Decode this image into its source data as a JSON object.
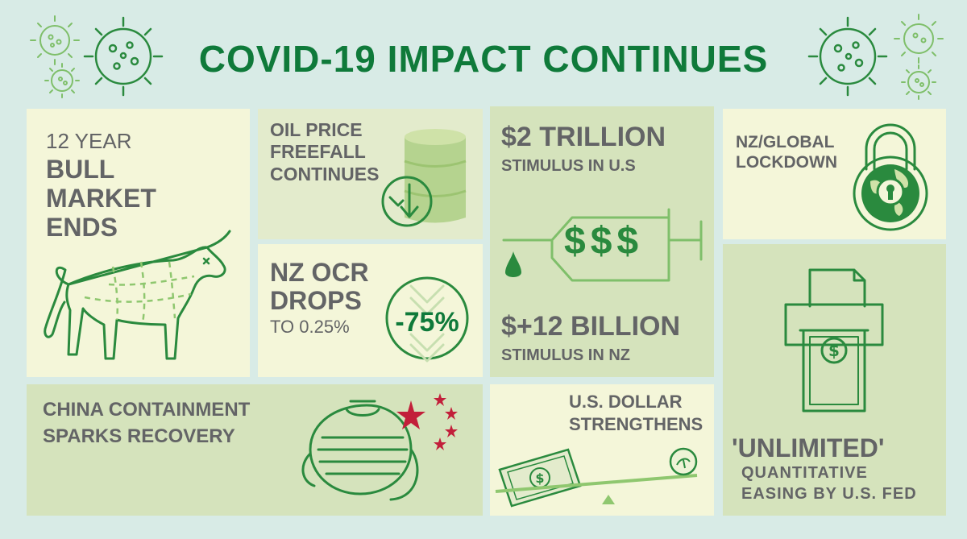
{
  "title": "COVID-19 IMPACT CONTINUES",
  "colors": {
    "title_green": "#0f7a3a",
    "icon_green": "#2a8a3e",
    "light_green": "#7fbf6a",
    "text_gray": "#636466",
    "star_red": "#c21f3a",
    "background": "#d8ebe6"
  },
  "bull_market": {
    "line1": "12 YEAR",
    "line2": "BULL",
    "line3": "MARKET",
    "line4": "ENDS"
  },
  "oil": {
    "line1": "OIL PRICE",
    "line2": "FREEFALL",
    "line3": "CONTINUES"
  },
  "ocr": {
    "line1": "NZ OCR",
    "line2": "DROPS",
    "line3": "TO 0.25%",
    "badge": "-75%"
  },
  "stimulus_us": {
    "amount": "$2 TRILLION",
    "label": "STIMULUS IN U.S"
  },
  "syringe": {
    "text": "$$$"
  },
  "stimulus_nz": {
    "amount": "$+12 BILLION",
    "label": "STIMULUS IN NZ"
  },
  "lockdown": {
    "line1": "NZ/GLOBAL",
    "line2": "LOCKDOWN"
  },
  "china": {
    "line1": "CHINA CONTAINMENT",
    "line2": "SPARKS RECOVERY"
  },
  "dollar": {
    "line1": "U.S. DOLLAR",
    "line2": "STRENGTHENS"
  },
  "qe": {
    "line1": "'UNLIMITED'",
    "line2": "QUANTITATIVE",
    "line3": "EASING BY U.S. FED"
  },
  "icons": [
    "virus-icon",
    "bull-icon",
    "oil-barrel-icon",
    "down-arrow-icon",
    "syringe-icon",
    "padlock-globe-icon",
    "face-mask-icon",
    "star-icon",
    "dollar-bill-icon",
    "seesaw-icon",
    "coin-icon",
    "money-printer-icon"
  ]
}
